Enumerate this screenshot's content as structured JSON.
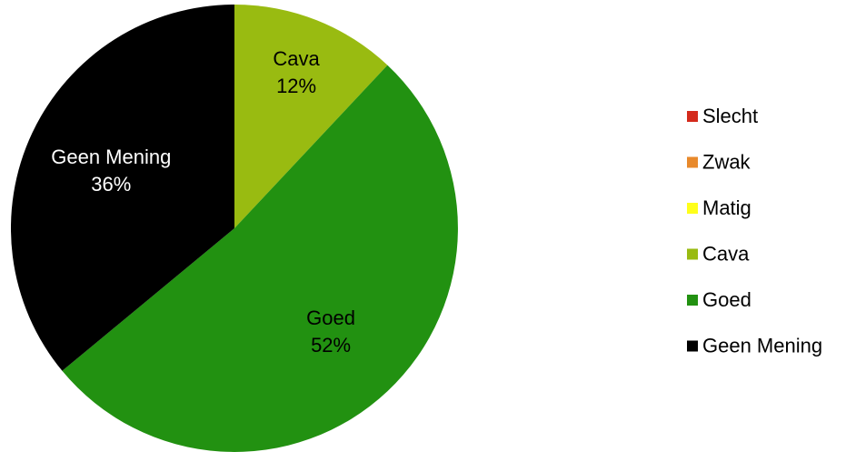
{
  "chart_data": {
    "type": "pie",
    "title": "",
    "legend_position": "right",
    "categories": [
      "Slecht",
      "Zwak",
      "Matig",
      "Cava",
      "Goed",
      "Geen Mening"
    ],
    "values": [
      0,
      0,
      0,
      12,
      52,
      36
    ],
    "colors": [
      "#d42a1c",
      "#e8892b",
      "#ffff1a",
      "#99bb11",
      "#229111",
      "#000000"
    ],
    "slice_labels": [
      {
        "category": "Cava",
        "name": "Cava",
        "percent": "12%",
        "text_color": "#000000"
      },
      {
        "category": "Goed",
        "name": "Goed",
        "percent": "52%",
        "text_color": "#000000"
      },
      {
        "category": "Geen Mening",
        "name": "Geen Mening",
        "percent": "36%",
        "text_color": "#ffffff"
      }
    ]
  }
}
